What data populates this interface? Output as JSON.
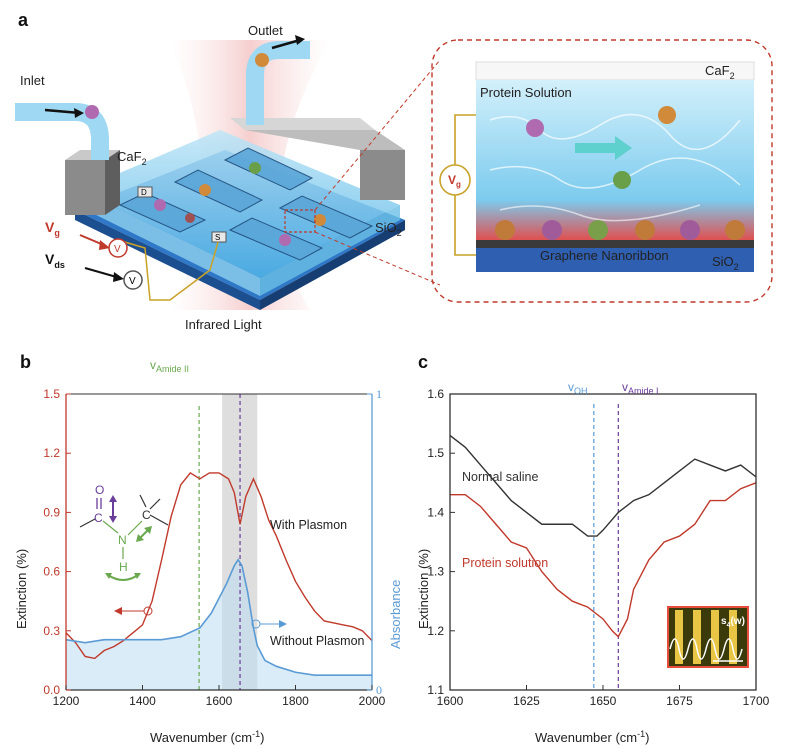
{
  "panel_a": {
    "letter": "a",
    "inlet": "Inlet",
    "outlet": "Outlet",
    "caf2": "CaF",
    "caf2_sub": "2",
    "sio2": "SiO",
    "sio2_sub": "2",
    "vg": "V",
    "vg_sub": "g",
    "vds": "V",
    "vds_sub": "ds",
    "meter_glyph": "V",
    "electrode_d": "D",
    "electrode_s": "S",
    "infrared": "Infrared Light",
    "inset_caf2": "CaF",
    "inset_caf2_sub": "2",
    "inset_solution": "Protein Solution",
    "inset_vg": "V",
    "inset_vg_sub": "g",
    "inset_graphene": "Graphene Nanoribbon",
    "inset_sio2": "SiO",
    "inset_sio2_sub": "2"
  },
  "panel_b": {
    "letter": "b",
    "ylabel_left": "Extinction (%)",
    "ylabel_right": "Absorbance",
    "xlabel": "Wavenumber (cm",
    "xlabel_sup": "-1",
    "xlabel_end": ")",
    "amide_label": "v",
    "amide_sub": "Amide II",
    "with_plasmon": "With Plasmon",
    "without_plasmon": "Without Plasmon",
    "right_tick_top": "1",
    "right_tick_bottom": "0",
    "mol_o": "O",
    "mol_c1": "C",
    "mol_c2": "C",
    "mol_n": "N",
    "mol_h": "H"
  },
  "panel_c": {
    "letter": "c",
    "ylabel": "Extinction (%)",
    "xlabel": "Wavenumber (cm",
    "xlabel_sup": "-1",
    "xlabel_end": ")",
    "voh": "v",
    "voh_sub": "OH",
    "vamide": "v",
    "vamide_sub": "Amide I",
    "normal_saline": "Normal saline",
    "protein_solution": "Protein solution",
    "inset_label": "s",
    "inset_label_sub": "4",
    "inset_label_end": "(w)"
  },
  "colors": {
    "red": "#c0392b",
    "blue": "#5b9bd5",
    "green": "#6aa84f",
    "purple": "#6a3d9a",
    "dark": "#333333"
  },
  "chart_data": [
    {
      "type": "line",
      "panel": "b",
      "xlabel": "Wavenumber (cm-1)",
      "ylabel": "Extinction (%)",
      "y2label": "Absorbance",
      "xlim": [
        1200,
        2000
      ],
      "ylim": [
        0,
        1.5
      ],
      "y2lim": [
        0,
        1
      ],
      "xticks": [
        1200,
        1400,
        1600,
        1800,
        2000
      ],
      "yticks": [
        0.0,
        0.3,
        0.6,
        0.9,
        1.2,
        1.5
      ],
      "y2ticks": [
        0,
        1
      ],
      "annotations": [
        {
          "text": "vAmide II",
          "x": 1548
        },
        {
          "x": 1655
        },
        {
          "shaded_band": [
            1608,
            1700
          ]
        }
      ],
      "series": [
        {
          "name": "With Plasmon",
          "axis": "left",
          "x": [
            1200,
            1225,
            1250,
            1275,
            1300,
            1325,
            1350,
            1375,
            1400,
            1425,
            1450,
            1475,
            1500,
            1525,
            1550,
            1575,
            1600,
            1625,
            1640,
            1655,
            1670,
            1690,
            1710,
            1730,
            1750,
            1775,
            1800,
            1825,
            1850,
            1875,
            1900,
            1925,
            1950,
            1975,
            2000
          ],
          "values": [
            0.29,
            0.24,
            0.17,
            0.16,
            0.2,
            0.22,
            0.25,
            0.29,
            0.33,
            0.45,
            0.66,
            0.88,
            1.04,
            1.1,
            1.07,
            1.1,
            1.1,
            1.07,
            1.0,
            0.84,
            0.98,
            1.07,
            0.98,
            0.86,
            0.78,
            0.66,
            0.55,
            0.47,
            0.4,
            0.35,
            0.34,
            0.33,
            0.32,
            0.3,
            0.25
          ]
        },
        {
          "name": "Without Plasmon",
          "axis": "right",
          "x": [
            1200,
            1250,
            1300,
            1350,
            1400,
            1450,
            1500,
            1550,
            1580,
            1600,
            1620,
            1640,
            1650,
            1660,
            1675,
            1690,
            1700,
            1720,
            1750,
            1800,
            1850,
            1900,
            1950,
            2000
          ],
          "values": [
            0.17,
            0.16,
            0.17,
            0.17,
            0.17,
            0.17,
            0.18,
            0.21,
            0.26,
            0.31,
            0.36,
            0.42,
            0.44,
            0.42,
            0.33,
            0.21,
            0.15,
            0.1,
            0.08,
            0.06,
            0.05,
            0.05,
            0.05,
            0.05
          ]
        }
      ]
    },
    {
      "type": "line",
      "panel": "c",
      "xlabel": "Wavenumber (cm-1)",
      "ylabel": "Extinction (%)",
      "xlim": [
        1600,
        1700
      ],
      "ylim": [
        1.1,
        1.6
      ],
      "xticks": [
        1600,
        1625,
        1650,
        1675,
        1700
      ],
      "yticks": [
        1.1,
        1.2,
        1.3,
        1.4,
        1.5,
        1.6
      ],
      "annotations": [
        {
          "text": "vOH",
          "x": 1647
        },
        {
          "text": "vAmide I",
          "x": 1655
        }
      ],
      "series": [
        {
          "name": "Normal saline",
          "x": [
            1600,
            1605,
            1610,
            1615,
            1620,
            1625,
            1630,
            1635,
            1640,
            1645,
            1648,
            1650,
            1655,
            1660,
            1665,
            1670,
            1675,
            1680,
            1685,
            1690,
            1695,
            1700
          ],
          "values": [
            1.53,
            1.51,
            1.48,
            1.45,
            1.42,
            1.4,
            1.38,
            1.38,
            1.38,
            1.36,
            1.36,
            1.37,
            1.4,
            1.42,
            1.43,
            1.45,
            1.47,
            1.49,
            1.48,
            1.47,
            1.48,
            1.46
          ]
        },
        {
          "name": "Protein solution",
          "x": [
            1600,
            1605,
            1610,
            1615,
            1620,
            1625,
            1630,
            1635,
            1640,
            1645,
            1650,
            1653,
            1655,
            1658,
            1660,
            1665,
            1670,
            1675,
            1680,
            1685,
            1690,
            1695,
            1700
          ],
          "values": [
            1.43,
            1.43,
            1.41,
            1.38,
            1.35,
            1.34,
            1.3,
            1.27,
            1.25,
            1.24,
            1.22,
            1.2,
            1.19,
            1.22,
            1.27,
            1.32,
            1.35,
            1.36,
            1.38,
            1.42,
            1.42,
            1.44,
            1.45
          ]
        }
      ]
    }
  ]
}
